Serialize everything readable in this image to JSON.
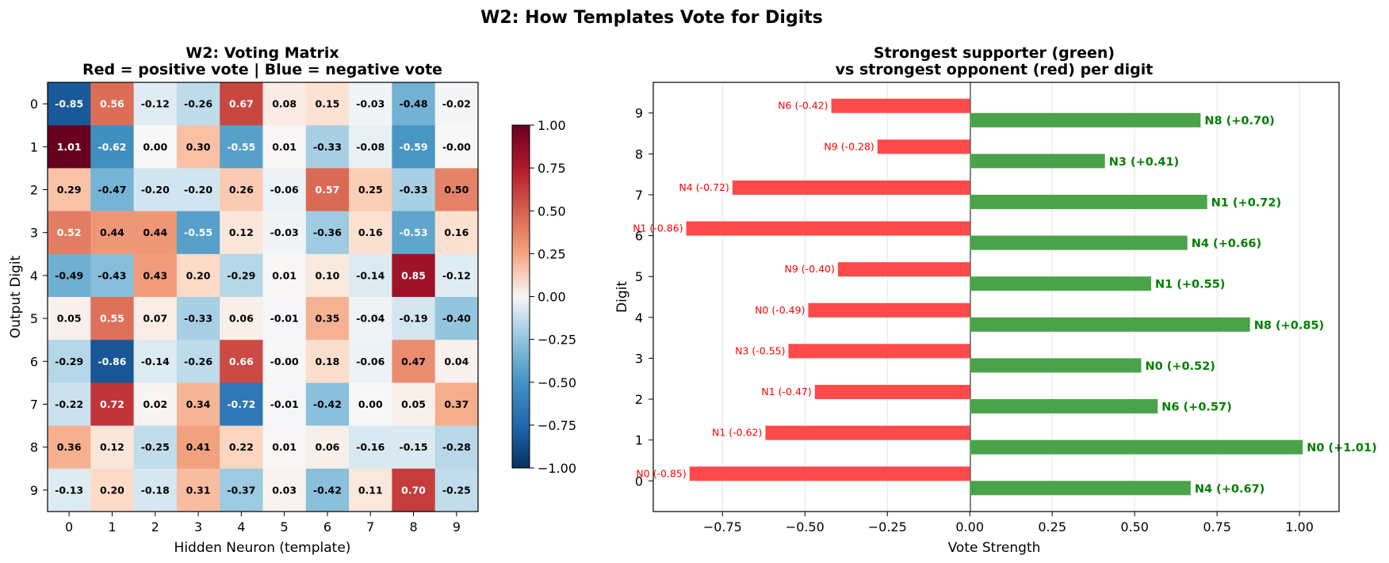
{
  "figure": {
    "suptitle": "W2: How Templates Vote for Digits"
  },
  "chart_data": [
    {
      "type": "heatmap",
      "title_line1": "W2: Voting Matrix",
      "title_line2": "Red = positive vote | Blue = negative vote",
      "xlabel": "Hidden Neuron (template)",
      "ylabel": "Output Digit",
      "x_ticks": [
        "0",
        "1",
        "2",
        "3",
        "4",
        "5",
        "6",
        "7",
        "8",
        "9"
      ],
      "y_ticks": [
        "0",
        "1",
        "2",
        "3",
        "4",
        "5",
        "6",
        "7",
        "8",
        "9"
      ],
      "colormap": "RdBu_r",
      "vmin": -1.0,
      "vmax": 1.0,
      "colorbar_ticks": [
        "1.00",
        "0.75",
        "0.50",
        "0.25",
        "0.00",
        "−0.25",
        "−0.50",
        "−0.75",
        "−1.00"
      ],
      "values": [
        [
          -0.85,
          0.56,
          -0.12,
          -0.26,
          0.67,
          0.08,
          0.15,
          -0.03,
          -0.48,
          -0.02
        ],
        [
          1.01,
          -0.62,
          0.0,
          0.3,
          -0.55,
          0.01,
          -0.33,
          -0.08,
          -0.59,
          -0.0
        ],
        [
          0.29,
          -0.47,
          -0.2,
          -0.2,
          0.26,
          -0.06,
          0.57,
          0.25,
          -0.33,
          0.5
        ],
        [
          0.52,
          0.44,
          0.44,
          -0.55,
          0.12,
          -0.03,
          -0.36,
          0.16,
          -0.53,
          0.16
        ],
        [
          -0.49,
          -0.43,
          0.43,
          0.2,
          -0.29,
          0.01,
          0.1,
          -0.14,
          0.85,
          -0.12
        ],
        [
          0.05,
          0.55,
          0.07,
          -0.33,
          0.06,
          -0.01,
          0.35,
          -0.04,
          -0.19,
          -0.4
        ],
        [
          -0.29,
          -0.86,
          -0.14,
          -0.26,
          0.66,
          -0.0,
          0.18,
          -0.06,
          0.47,
          0.04
        ],
        [
          -0.22,
          0.72,
          0.02,
          0.34,
          -0.72,
          -0.01,
          -0.42,
          0.0,
          0.05,
          0.37
        ],
        [
          0.36,
          0.12,
          -0.25,
          0.41,
          0.22,
          0.01,
          0.06,
          -0.16,
          -0.15,
          -0.28
        ],
        [
          -0.13,
          0.2,
          -0.18,
          0.31,
          -0.37,
          0.03,
          -0.42,
          0.11,
          0.7,
          -0.25
        ]
      ],
      "cell_labels": [
        [
          "-0.85",
          "0.56",
          "-0.12",
          "-0.26",
          "0.67",
          "0.08",
          "0.15",
          "-0.03",
          "-0.48",
          "-0.02"
        ],
        [
          "1.01",
          "-0.62",
          "0.00",
          "0.30",
          "-0.55",
          "0.01",
          "-0.33",
          "-0.08",
          "-0.59",
          "-0.00"
        ],
        [
          "0.29",
          "-0.47",
          "-0.20",
          "-0.20",
          "0.26",
          "-0.06",
          "0.57",
          "0.25",
          "-0.33",
          "0.50"
        ],
        [
          "0.52",
          "0.44",
          "0.44",
          "-0.55",
          "0.12",
          "-0.03",
          "-0.36",
          "0.16",
          "-0.53",
          "0.16"
        ],
        [
          "-0.49",
          "-0.43",
          "0.43",
          "0.20",
          "-0.29",
          "0.01",
          "0.10",
          "-0.14",
          "0.85",
          "-0.12"
        ],
        [
          "0.05",
          "0.55",
          "0.07",
          "-0.33",
          "0.06",
          "-0.01",
          "0.35",
          "-0.04",
          "-0.19",
          "-0.40"
        ],
        [
          "-0.29",
          "-0.86",
          "-0.14",
          "-0.26",
          "0.66",
          "-0.00",
          "0.18",
          "-0.06",
          "0.47",
          "0.04"
        ],
        [
          "-0.22",
          "0.72",
          "0.02",
          "0.34",
          "-0.72",
          "-0.01",
          "-0.42",
          "0.00",
          "0.05",
          "0.37"
        ],
        [
          "0.36",
          "0.12",
          "-0.25",
          "0.41",
          "0.22",
          "0.01",
          "0.06",
          "-0.16",
          "-0.15",
          "-0.28"
        ],
        [
          "-0.13",
          "0.20",
          "-0.18",
          "0.31",
          "-0.37",
          "0.03",
          "-0.42",
          "0.11",
          "0.70",
          "-0.25"
        ]
      ]
    },
    {
      "type": "bar",
      "orientation": "horizontal",
      "title_line1": "Strongest supporter (green)",
      "title_line2": "vs strongest opponent (red) per digit",
      "xlabel": "Vote Strength",
      "ylabel": "Digit",
      "xlim": [
        -0.96,
        1.12
      ],
      "x_ticks": [
        -0.75,
        -0.5,
        -0.25,
        0.0,
        0.25,
        0.5,
        0.75,
        1.0
      ],
      "x_tick_labels": [
        "−0.75",
        "−0.50",
        "−0.25",
        "0.00",
        "0.25",
        "0.50",
        "0.75",
        "1.00"
      ],
      "categories": [
        "0",
        "1",
        "2",
        "3",
        "4",
        "5",
        "6",
        "7",
        "8",
        "9"
      ],
      "grid": "vertical",
      "colors": {
        "supporter": "#4aa34a",
        "opponent": "#fe4a4a",
        "supporter_text": "#008000",
        "opponent_text": "#ff0000"
      },
      "series": [
        {
          "values": [
            0.67,
            1.01,
            0.57,
            0.52,
            0.85,
            0.55,
            0.66,
            0.72,
            0.41,
            0.7
          ],
          "labels": [
            "N4 (+0.67)",
            "N0 (+1.01)",
            "N6 (+0.57)",
            "N0 (+0.52)",
            "N8 (+0.85)",
            "N1 (+0.55)",
            "N4 (+0.66)",
            "N1 (+0.72)",
            "N3 (+0.41)",
            "N8 (+0.70)"
          ]
        },
        {
          "values": [
            -0.85,
            -0.62,
            -0.47,
            -0.55,
            -0.49,
            -0.4,
            -0.86,
            -0.72,
            -0.28,
            -0.42
          ],
          "labels": [
            "N0 (-0.85)",
            "N1 (-0.62)",
            "N1 (-0.47)",
            "N3 (-0.55)",
            "N0 (-0.49)",
            "N9 (-0.40)",
            "N1 (-0.86)",
            "N4 (-0.72)",
            "N9 (-0.28)",
            "N6 (-0.42)"
          ]
        }
      ]
    }
  ]
}
